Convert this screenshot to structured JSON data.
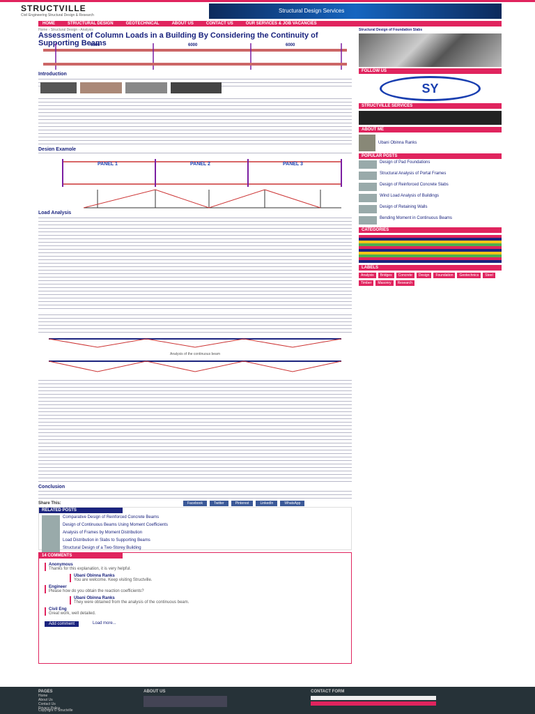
{
  "header": {
    "logo": "STRUCTVILLE",
    "tagline": "Civil Engineering Structural Design & Research",
    "banner": "Structural Design Services"
  },
  "nav": [
    "HOME",
    "STRUCTURAL DESIGN",
    "GEOTECHNICAL",
    "ABOUT US",
    "CONTACT US",
    "OUR SERVICES & JOB VACANCIES"
  ],
  "article": {
    "breadcrumb": "Home › Structural Design › Analysis",
    "title": "Assessment of Column Loads in a Building By Considering the Continuity of Supporting Beams",
    "figure1_spans": [
      "6000",
      "6000",
      "6000"
    ],
    "introduction": "Introduction",
    "design_example": "Design Example",
    "figure2_panels": [
      "PANEL 1",
      "PANEL 2",
      "PANEL 3"
    ],
    "load_analysis": "Load Analysis",
    "figure3_caption": "Analysis of the continuous beam",
    "conclusion": "Conclusion",
    "share": "Share This:"
  },
  "share_buttons": [
    "Facebook",
    "Twitter",
    "Pinterest",
    "LinkedIn",
    "WhatsApp"
  ],
  "related": {
    "heading": "RELATED POSTS",
    "items": [
      "Comparative Design of Reinforced Concrete Beams",
      "Design of Continuous Beams Using Moment Coefficients",
      "Analysis of Frames by Moment Distribution",
      "Load Distribution in Slabs to Supporting Beams",
      "Structural Design of a Two-Storey Building"
    ]
  },
  "comments": {
    "heading": "14 COMMENTS",
    "items": [
      {
        "author": "Anonymous",
        "text": "Thanks for this explanation, it is very helpful."
      },
      {
        "author": "Ubani Obinna Ranks",
        "text": "You are welcome. Keep visiting Structville."
      },
      {
        "author": "Engineer",
        "text": "Please how do you obtain the reaction coefficients?"
      },
      {
        "author": "Ubani Obinna Ranks",
        "text": "They were obtained from the analysis of the continuous beam."
      },
      {
        "author": "Civil Eng",
        "text": "Great work, well detailed."
      }
    ],
    "add": "Add comment",
    "load_more": "Load more..."
  },
  "sidebar": {
    "ad_title": "Structural Design of Foundation Slabs",
    "headings": [
      "FOLLOW US",
      "STRUCTVILLE SERVICES",
      "ABOUT ME",
      "POPULAR POSTS",
      "CATEGORIES",
      "LABELS"
    ],
    "about_name": "Ubani Obinna Ranks",
    "popular": [
      "Design of Pad Foundations",
      "Structural Analysis of Portal Frames",
      "Design of Reinforced Concrete Slabs",
      "Wind Load Analysis of Buildings",
      "Design of Retaining Walls",
      "Bending Moment in Continuous Beams"
    ],
    "labels": [
      "Analysis",
      "Bridges",
      "Concrete",
      "Design",
      "Foundation",
      "Geotechnics",
      "Steel",
      "Timber",
      "Masonry",
      "Research"
    ]
  },
  "footer": {
    "pages_heading": "PAGES",
    "pages": [
      "Home",
      "About Us",
      "Contact Us",
      "Privacy Policy"
    ],
    "about_heading": "ABOUT US",
    "contact_heading": "CONTACT FORM",
    "copyright": "Copyright © Structville"
  }
}
